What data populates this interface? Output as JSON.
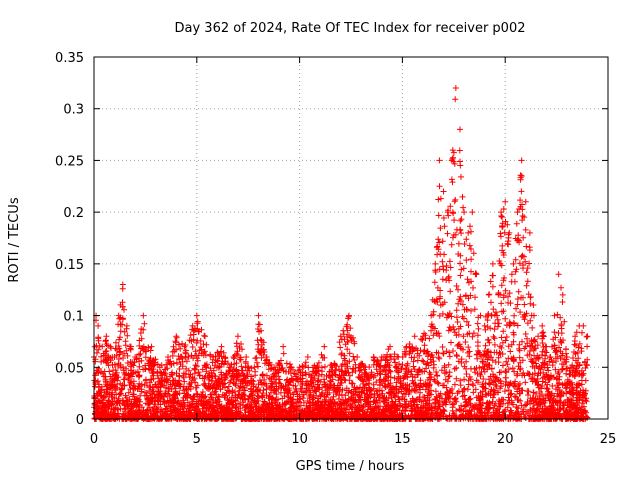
{
  "chart_data": {
    "type": "scatter",
    "title": "Day 362 of 2024, Rate Of TEC Index for receiver p002",
    "xlabel": "GPS time / hours",
    "ylabel": "ROTI / TECUs",
    "xlim": [
      0,
      25
    ],
    "ylim": [
      0,
      0.35
    ],
    "xticks": [
      0,
      5,
      10,
      15,
      20,
      25
    ],
    "xtick_labels": [
      "0",
      "5",
      "10",
      "15",
      "20",
      "25"
    ],
    "yticks": [
      0,
      0.05,
      0.1,
      0.15,
      0.2,
      0.25,
      0.3,
      0.35
    ],
    "ytick_labels": [
      "0",
      "0.05",
      "0.1",
      "0.15",
      "0.2",
      "0.25",
      "0.3",
      "0.35"
    ],
    "grid": true,
    "legend": "none",
    "marker": "+",
    "series_color": "#ff0000",
    "envelope": {
      "x": [
        0,
        0.1,
        0.2,
        0.4,
        0.6,
        0.8,
        1.0,
        1.2,
        1.4,
        1.6,
        1.8,
        2.0,
        2.4,
        2.8,
        3.2,
        3.6,
        4.0,
        4.4,
        4.8,
        5.0,
        5.4,
        5.8,
        6.2,
        6.6,
        7.0,
        7.4,
        7.8,
        8.0,
        8.4,
        8.8,
        9.2,
        9.6,
        10.0,
        10.4,
        10.8,
        11.2,
        11.6,
        12.0,
        12.4,
        12.8,
        13.2,
        13.6,
        14.0,
        14.4,
        14.8,
        15.2,
        15.6,
        16.0,
        16.4,
        16.6,
        16.8,
        17.0,
        17.2,
        17.4,
        17.6,
        17.8,
        18.0,
        18.2,
        18.4,
        18.6,
        18.8,
        19.0,
        19.2,
        19.4,
        19.6,
        19.8,
        20.0,
        20.2,
        20.4,
        20.6,
        20.8,
        21.0,
        21.2,
        21.4,
        21.6,
        21.8,
        22.0,
        22.2,
        22.4,
        22.6,
        22.8,
        23.0,
        23.2,
        23.4,
        23.6,
        23.8,
        24.0
      ],
      "y_max": [
        0.06,
        0.1,
        0.09,
        0.07,
        0.08,
        0.07,
        0.06,
        0.1,
        0.13,
        0.09,
        0.07,
        0.06,
        0.1,
        0.07,
        0.05,
        0.06,
        0.08,
        0.07,
        0.09,
        0.1,
        0.08,
        0.06,
        0.07,
        0.05,
        0.08,
        0.06,
        0.05,
        0.1,
        0.06,
        0.05,
        0.07,
        0.05,
        0.05,
        0.06,
        0.05,
        0.07,
        0.05,
        0.08,
        0.1,
        0.06,
        0.05,
        0.06,
        0.06,
        0.07,
        0.06,
        0.07,
        0.08,
        0.08,
        0.1,
        0.15,
        0.25,
        0.22,
        0.2,
        0.25,
        0.32,
        0.28,
        0.2,
        0.18,
        0.2,
        0.14,
        0.1,
        0.09,
        0.12,
        0.15,
        0.1,
        0.2,
        0.21,
        0.18,
        0.15,
        0.2,
        0.25,
        0.21,
        0.18,
        0.1,
        0.08,
        0.09,
        0.07,
        0.06,
        0.1,
        0.14,
        0.12,
        0.06,
        0.05,
        0.08,
        0.09,
        0.09,
        0.08
      ]
    }
  }
}
